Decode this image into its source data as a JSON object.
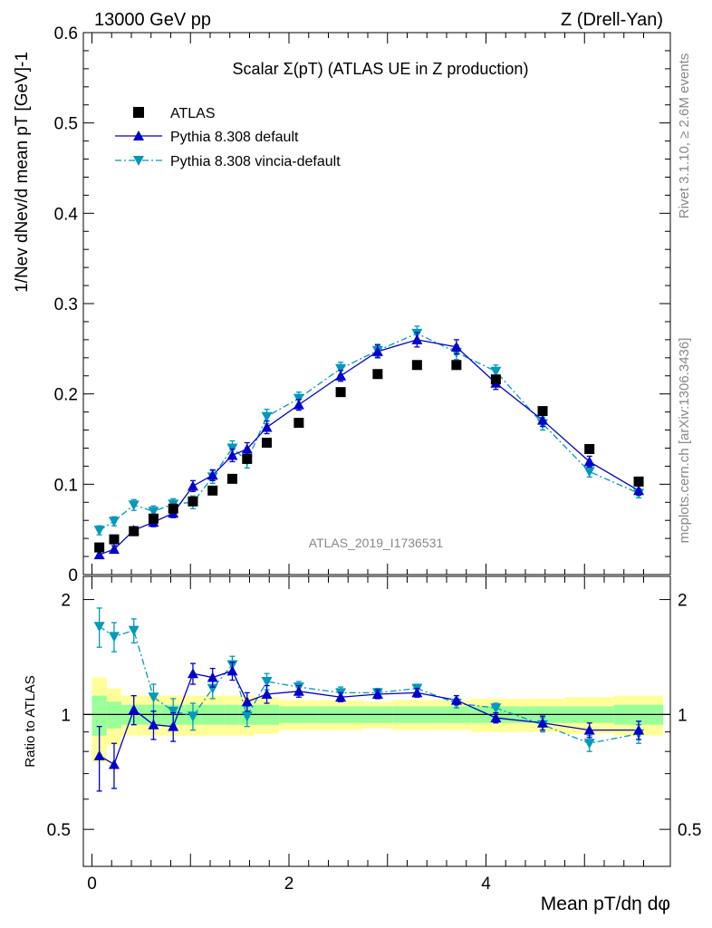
{
  "header": {
    "energy_label": "13000 GeV pp",
    "process_label": "Z (Drell-Yan)"
  },
  "side_labels": {
    "rivet": "Rivet 3.1.10, ≥ 2.6M events",
    "mcplots": "mcplots.cern.ch [arXiv:1306.3436]"
  },
  "analysis_id": "ATLAS_2019_I1736531",
  "colors": {
    "atlas": "#000000",
    "default": "#0000cc",
    "vincia": "#0099bb",
    "band_inner": "#99ff99",
    "band_outer": "#ffff99"
  },
  "chart_data": [
    {
      "type": "scatter",
      "title": "Scalar Σ(pT) (ATLAS UE in Z production)",
      "ylabel": "1/Nev dNev/d mean pT [GeV]-1",
      "xlim": [
        -0.1,
        5.9
      ],
      "ylim": [
        0,
        0.6
      ],
      "yticks": [
        "0",
        "0.1",
        "0.2",
        "0.3",
        "0.4",
        "0.5",
        "0.6"
      ],
      "legend_position": "top-left",
      "x": [
        0.075,
        0.225,
        0.425,
        0.625,
        0.825,
        1.025,
        1.225,
        1.425,
        1.575,
        1.775,
        2.1,
        2.525,
        2.9,
        3.3,
        3.7,
        4.1,
        4.575,
        5.05,
        5.55
      ],
      "series": [
        {
          "name": "ATLAS",
          "marker": "square",
          "values": [
            0.03,
            0.039,
            0.048,
            0.062,
            0.073,
            0.081,
            0.093,
            0.106,
            0.128,
            0.146,
            0.168,
            0.202,
            0.222,
            0.232,
            0.232,
            0.216,
            0.181,
            0.139,
            0.103
          ]
        },
        {
          "name": "Pythia 8.308 default",
          "marker": "triangle-up",
          "line": "solid",
          "values": [
            0.022,
            0.028,
            0.049,
            0.058,
            0.068,
            0.098,
            0.11,
            0.132,
            0.139,
            0.163,
            0.188,
            0.22,
            0.247,
            0.26,
            0.252,
            0.212,
            0.171,
            0.125,
            0.093
          ],
          "errors": [
            0.004,
            0.004,
            0.004,
            0.005,
            0.005,
            0.006,
            0.006,
            0.007,
            0.007,
            0.007,
            0.006,
            0.006,
            0.007,
            0.008,
            0.008,
            0.007,
            0.007,
            0.006,
            0.005
          ]
        },
        {
          "name": "Pythia 8.308 vincia-default",
          "marker": "triangle-down",
          "line": "dash-dot",
          "values": [
            0.049,
            0.059,
            0.077,
            0.07,
            0.078,
            0.08,
            0.108,
            0.14,
            0.126,
            0.175,
            0.195,
            0.228,
            0.248,
            0.267,
            0.246,
            0.225,
            0.167,
            0.114,
            0.09
          ],
          "errors": [
            0.005,
            0.005,
            0.006,
            0.006,
            0.006,
            0.007,
            0.007,
            0.008,
            0.008,
            0.008,
            0.007,
            0.007,
            0.007,
            0.008,
            0.008,
            0.007,
            0.007,
            0.006,
            0.005
          ]
        }
      ]
    },
    {
      "type": "scatter",
      "xlabel": "Mean pT/dη dφ",
      "ylabel": "Ratio to ATLAS",
      "xlim": [
        -0.1,
        5.9
      ],
      "ylim": [
        0.4,
        2.3
      ],
      "log_y": true,
      "yticks": [
        "0.5",
        "1",
        "2"
      ],
      "xticks": [
        "0",
        "2",
        "4"
      ],
      "x": [
        0.075,
        0.225,
        0.425,
        0.625,
        0.825,
        1.025,
        1.225,
        1.425,
        1.575,
        1.775,
        2.1,
        2.525,
        2.9,
        3.3,
        3.7,
        4.1,
        4.575,
        5.05,
        5.55
      ],
      "bin_edges": [
        0.0,
        0.15,
        0.3,
        0.55,
        0.7,
        0.95,
        1.1,
        1.35,
        1.5,
        1.65,
        1.9,
        2.3,
        2.75,
        3.05,
        3.55,
        3.85,
        4.35,
        4.8,
        5.3,
        5.8
      ],
      "band_inner": [
        0.12,
        0.08,
        0.06,
        0.06,
        0.06,
        0.06,
        0.06,
        0.06,
        0.06,
        0.06,
        0.05,
        0.05,
        0.05,
        0.05,
        0.05,
        0.05,
        0.05,
        0.05,
        0.06
      ],
      "band_outer": [
        0.25,
        0.17,
        0.12,
        0.12,
        0.12,
        0.12,
        0.12,
        0.12,
        0.12,
        0.11,
        0.09,
        0.09,
        0.08,
        0.09,
        0.09,
        0.1,
        0.1,
        0.11,
        0.12
      ],
      "series": [
        {
          "name": "Pythia 8.308 default",
          "values": [
            0.78,
            0.74,
            1.03,
            0.94,
            0.93,
            1.28,
            1.25,
            1.3,
            1.08,
            1.13,
            1.15,
            1.11,
            1.13,
            1.14,
            1.09,
            0.98,
            0.95,
            0.91,
            0.91
          ],
          "errors": [
            0.15,
            0.1,
            0.09,
            0.08,
            0.08,
            0.08,
            0.07,
            0.07,
            0.06,
            0.06,
            0.04,
            0.03,
            0.03,
            0.03,
            0.03,
            0.03,
            0.04,
            0.04,
            0.05
          ]
        },
        {
          "name": "Pythia 8.308 vincia-default",
          "values": [
            1.7,
            1.6,
            1.66,
            1.11,
            1.02,
            0.99,
            1.17,
            1.35,
            0.99,
            1.22,
            1.18,
            1.14,
            1.14,
            1.17,
            1.07,
            1.04,
            0.94,
            0.84,
            0.89
          ],
          "errors": [
            0.2,
            0.14,
            0.12,
            0.09,
            0.08,
            0.08,
            0.07,
            0.07,
            0.06,
            0.06,
            0.04,
            0.04,
            0.03,
            0.03,
            0.03,
            0.03,
            0.04,
            0.04,
            0.05
          ]
        }
      ]
    }
  ]
}
